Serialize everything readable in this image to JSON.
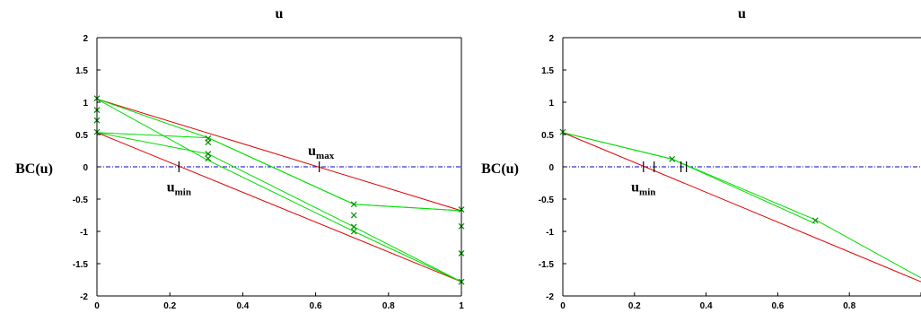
{
  "colors": {
    "envelope": "#e00000",
    "path": "#00dd00",
    "marker": "#008800",
    "zero_line": "#0000cc",
    "axis": "#000000"
  },
  "chart_data": [
    {
      "type": "line",
      "title": "u",
      "ylabel": "BC(u)",
      "xlim": [
        0,
        1
      ],
      "ylim": [
        -2,
        2
      ],
      "xticks": [
        "0",
        "0.2",
        "0.4",
        "0.6",
        "0.8",
        "1"
      ],
      "yticks": [
        "2",
        "1.5",
        "1",
        "0.5",
        "0",
        "-0.5",
        "-1",
        "-1.5",
        "-2"
      ],
      "grid": false,
      "zero_line": 0,
      "envelope_lines": [
        [
          [
            0,
            1.05
          ],
          [
            1,
            -0.68
          ]
        ],
        [
          [
            0,
            0.53
          ],
          [
            1,
            -1.78
          ]
        ]
      ],
      "paths": [
        [
          [
            0,
            1.05
          ],
          [
            0.305,
            0.45
          ],
          [
            0.705,
            -0.58
          ],
          [
            1,
            -0.68
          ]
        ],
        [
          [
            0,
            1.05
          ],
          [
            0.305,
            0.1
          ],
          [
            0.705,
            -1.0
          ],
          [
            1,
            -1.78
          ]
        ],
        [
          [
            0,
            0.53
          ],
          [
            0.305,
            0.2
          ],
          [
            0.705,
            -0.93
          ],
          [
            1,
            -1.78
          ]
        ],
        [
          [
            0,
            0.53
          ],
          [
            0.305,
            0.45
          ],
          [
            0.705,
            -0.58
          ],
          [
            1,
            -0.68
          ]
        ]
      ],
      "markers": [
        [
          0,
          1.06
        ],
        [
          0,
          0.88
        ],
        [
          0,
          0.72
        ],
        [
          0,
          0.54
        ],
        [
          0.305,
          0.44
        ],
        [
          0.305,
          0.38
        ],
        [
          0.305,
          0.2
        ],
        [
          0.305,
          0.13
        ],
        [
          0.705,
          -0.58
        ],
        [
          0.705,
          -0.75
        ],
        [
          0.705,
          -0.93
        ],
        [
          0.705,
          -1.0
        ],
        [
          1,
          -0.66
        ],
        [
          1,
          -0.92
        ],
        [
          1,
          -1.34
        ],
        [
          1,
          -1.78
        ]
      ],
      "tick_marks": [
        {
          "x": 0.225,
          "y": 0
        },
        {
          "x": 0.61,
          "y": 0
        }
      ],
      "annotations": [
        {
          "base": "u",
          "sub": "min",
          "x": 0.225,
          "y": -0.38
        },
        {
          "base": "u",
          "sub": "max",
          "x": 0.615,
          "y": 0.18
        }
      ]
    },
    {
      "type": "line",
      "title": "u",
      "ylabel": "BC(u)",
      "xlim": [
        0,
        1
      ],
      "ylim": [
        -2,
        2
      ],
      "xticks": [
        "0",
        "0.2",
        "0.4",
        "0.6",
        "0.8",
        "1"
      ],
      "yticks": [
        "2",
        "1.5",
        "1",
        "0.5",
        "0",
        "-0.5",
        "-1",
        "-1.5",
        "-2"
      ],
      "grid": false,
      "zero_line": 0,
      "envelope_lines": [
        [
          [
            0,
            0.53
          ],
          [
            1,
            -1.78
          ]
        ]
      ],
      "paths": [
        [
          [
            0,
            0.53
          ],
          [
            0.305,
            0.12
          ],
          [
            0.705,
            -0.82
          ],
          [
            1,
            -1.72
          ]
        ],
        [
          [
            0,
            0.53
          ],
          [
            0.305,
            0.12
          ],
          [
            0.705,
            -0.88
          ]
        ]
      ],
      "markers": [
        [
          0,
          0.54
        ],
        [
          0.305,
          0.12
        ],
        [
          0.705,
          -0.83
        ]
      ],
      "tick_marks": [
        {
          "x": 0.225,
          "y": 0
        },
        {
          "x": 0.255,
          "y": 0
        },
        {
          "x": 0.33,
          "y": 0
        },
        {
          "x": 0.345,
          "y": 0
        }
      ],
      "annotations": [
        {
          "base": "u",
          "sub": "min",
          "x": 0.225,
          "y": -0.38
        }
      ]
    }
  ]
}
